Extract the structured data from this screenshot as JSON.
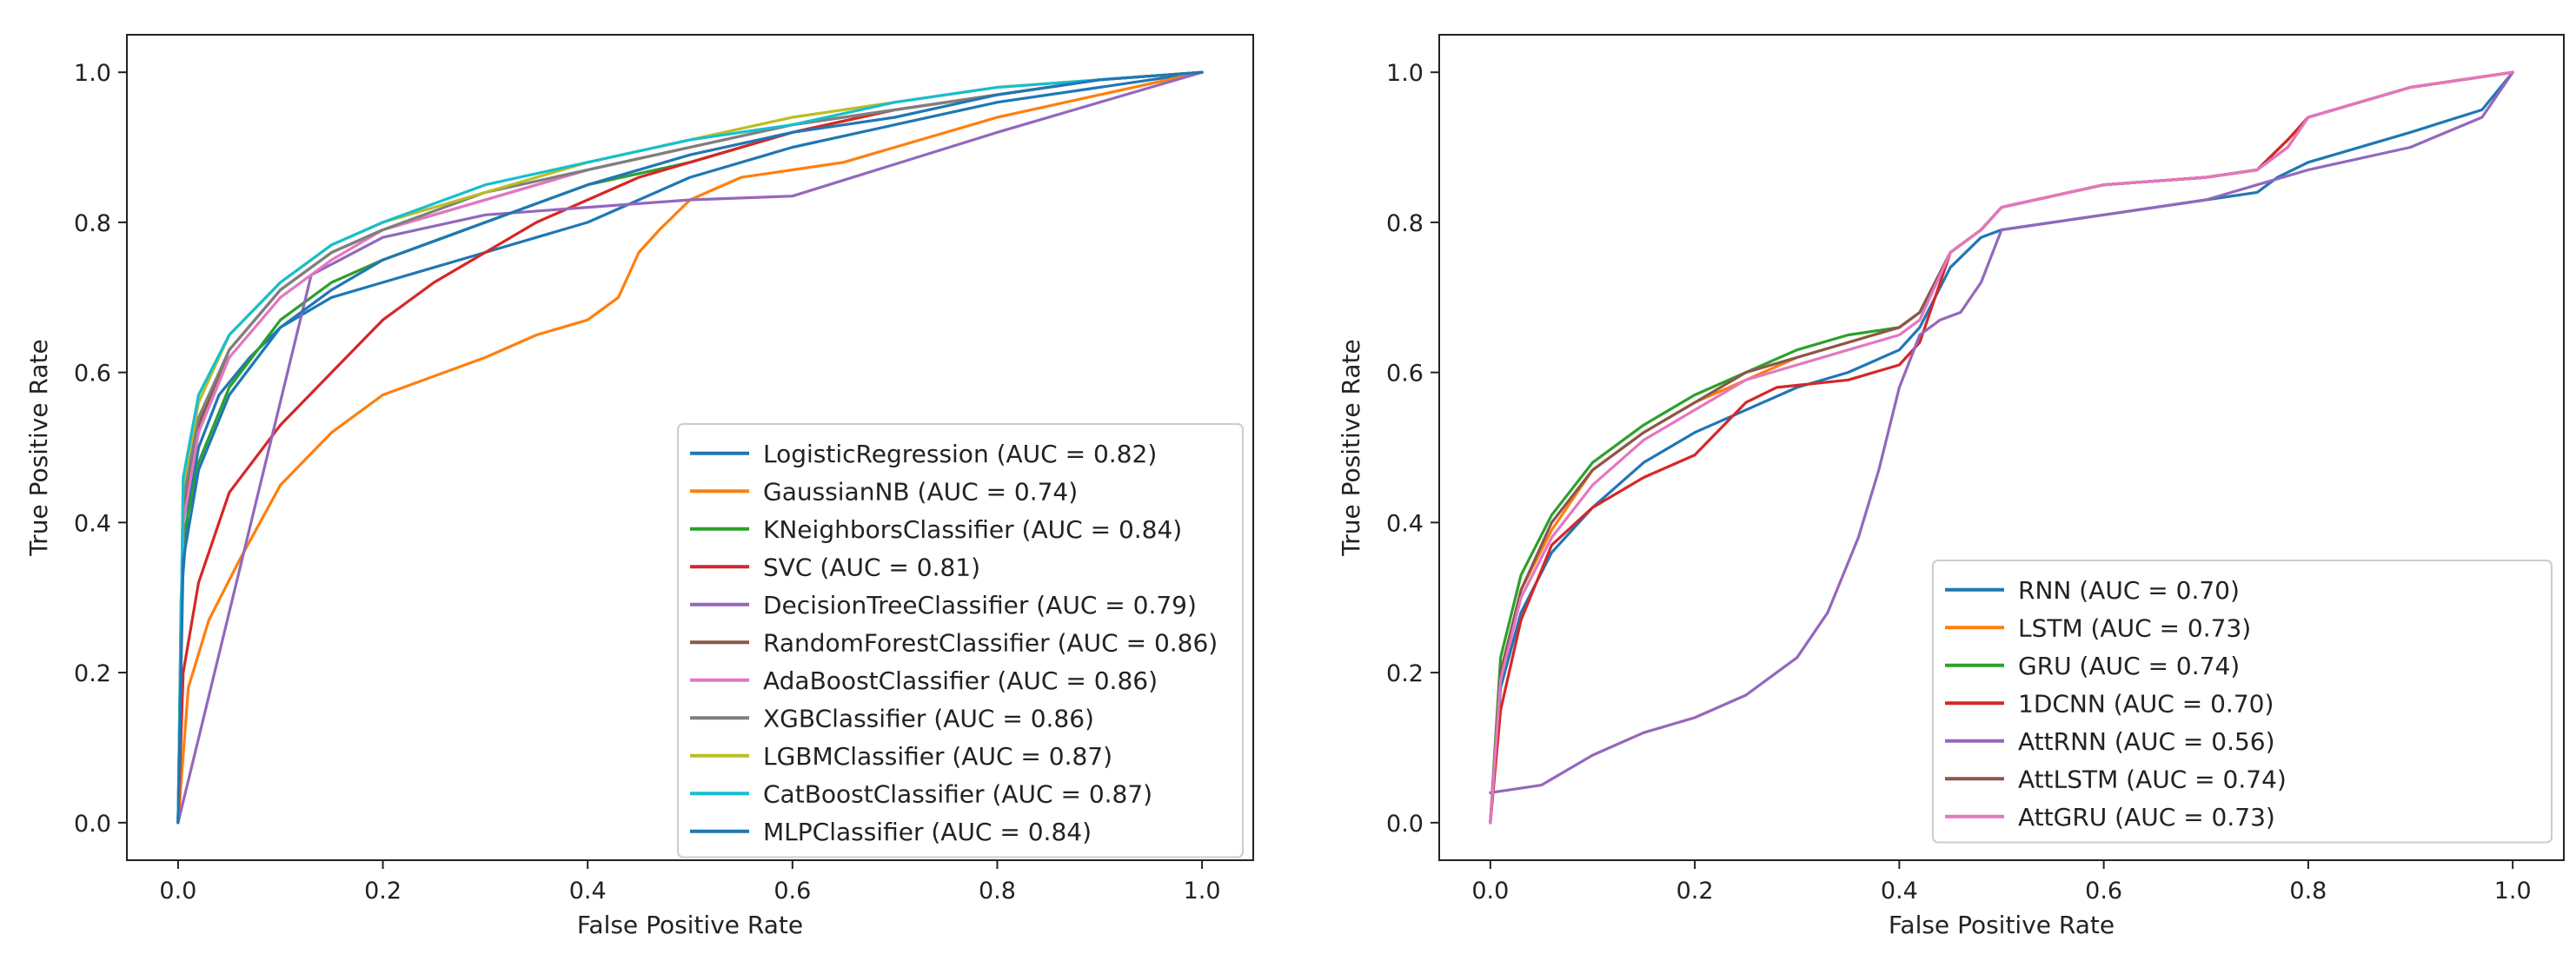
{
  "chart_data": [
    {
      "type": "line",
      "title": "",
      "xlabel": "False Positive Rate",
      "ylabel": "True Positive Rate",
      "xlim": [
        -0.05,
        1.05
      ],
      "ylim": [
        -0.05,
        1.05
      ],
      "xticks": [
        "0.0",
        "0.2",
        "0.4",
        "0.6",
        "0.8",
        "1.0"
      ],
      "yticks": [
        "0.0",
        "0.2",
        "0.4",
        "0.6",
        "0.8",
        "1.0"
      ],
      "legend_position": "lower-right",
      "series": [
        {
          "name": "LogisticRegression (AUC = 0.82)",
          "color": "#1f77b4",
          "x": [
            0,
            0.003,
            0.01,
            0.02,
            0.04,
            0.07,
            0.1,
            0.15,
            0.2,
            0.3,
            0.4,
            0.5,
            0.6,
            0.7,
            0.8,
            0.9,
            1.0
          ],
          "y": [
            0,
            0.3,
            0.42,
            0.5,
            0.57,
            0.62,
            0.66,
            0.7,
            0.72,
            0.76,
            0.8,
            0.86,
            0.9,
            0.93,
            0.96,
            0.98,
            1.0
          ]
        },
        {
          "name": "GaussianNB (AUC = 0.74)",
          "color": "#ff7f0e",
          "x": [
            0,
            0.01,
            0.03,
            0.06,
            0.1,
            0.15,
            0.2,
            0.3,
            0.35,
            0.4,
            0.43,
            0.45,
            0.47,
            0.5,
            0.55,
            0.6,
            0.65,
            0.7,
            0.8,
            0.9,
            1.0
          ],
          "y": [
            0,
            0.18,
            0.27,
            0.35,
            0.45,
            0.52,
            0.57,
            0.62,
            0.65,
            0.67,
            0.7,
            0.76,
            0.79,
            0.83,
            0.86,
            0.87,
            0.88,
            0.9,
            0.94,
            0.97,
            1.0
          ]
        },
        {
          "name": "KNeighborsClassifier (AUC = 0.84)",
          "color": "#2ca02c",
          "x": [
            0,
            0.005,
            0.02,
            0.05,
            0.1,
            0.15,
            0.2,
            0.3,
            0.4,
            0.5,
            0.6,
            0.7,
            0.8,
            0.9,
            1.0
          ],
          "y": [
            0,
            0.38,
            0.48,
            0.58,
            0.67,
            0.72,
            0.75,
            0.8,
            0.85,
            0.88,
            0.92,
            0.95,
            0.97,
            0.99,
            1.0
          ]
        },
        {
          "name": "SVC (AUC = 0.81)",
          "color": "#d62728",
          "x": [
            0,
            0.005,
            0.02,
            0.05,
            0.1,
            0.15,
            0.2,
            0.25,
            0.3,
            0.35,
            0.4,
            0.45,
            0.5,
            0.6,
            0.7,
            0.8,
            0.9,
            1.0
          ],
          "y": [
            0,
            0.2,
            0.32,
            0.44,
            0.53,
            0.6,
            0.67,
            0.72,
            0.76,
            0.8,
            0.83,
            0.86,
            0.88,
            0.92,
            0.95,
            0.97,
            0.99,
            1.0
          ]
        },
        {
          "name": "DecisionTreeClassifier (AUC = 0.79)",
          "color": "#9467bd",
          "x": [
            0,
            0.13,
            0.2,
            0.3,
            0.4,
            0.5,
            0.6,
            0.8,
            1.0
          ],
          "y": [
            0,
            0.73,
            0.78,
            0.81,
            0.82,
            0.83,
            0.835,
            0.92,
            1.0
          ]
        },
        {
          "name": "RandomForestClassifier (AUC = 0.86)",
          "color": "#8c564b",
          "x": [
            0,
            0.005,
            0.02,
            0.05,
            0.1,
            0.15,
            0.2,
            0.3,
            0.4,
            0.5,
            0.6,
            0.7,
            0.8,
            0.9,
            1.0
          ],
          "y": [
            0,
            0.42,
            0.53,
            0.63,
            0.71,
            0.76,
            0.79,
            0.83,
            0.87,
            0.9,
            0.93,
            0.95,
            0.97,
            0.99,
            1.0
          ]
        },
        {
          "name": "AdaBoostClassifier (AUC = 0.86)",
          "color": "#e377c2",
          "x": [
            0,
            0.005,
            0.02,
            0.05,
            0.1,
            0.15,
            0.2,
            0.3,
            0.4,
            0.5,
            0.6,
            0.7,
            0.8,
            0.9,
            1.0
          ],
          "y": [
            0,
            0.4,
            0.52,
            0.62,
            0.7,
            0.75,
            0.79,
            0.83,
            0.87,
            0.9,
            0.93,
            0.95,
            0.97,
            0.99,
            1.0
          ]
        },
        {
          "name": "XGBClassifier (AUC = 0.86)",
          "color": "#7f7f7f",
          "x": [
            0,
            0.005,
            0.02,
            0.05,
            0.1,
            0.15,
            0.2,
            0.3,
            0.4,
            0.5,
            0.6,
            0.7,
            0.8,
            0.9,
            1.0
          ],
          "y": [
            0,
            0.43,
            0.54,
            0.63,
            0.71,
            0.76,
            0.79,
            0.84,
            0.87,
            0.9,
            0.93,
            0.95,
            0.97,
            0.99,
            1.0
          ]
        },
        {
          "name": "LGBMClassifier (AUC = 0.87)",
          "color": "#bcbd22",
          "x": [
            0,
            0.005,
            0.02,
            0.05,
            0.1,
            0.15,
            0.2,
            0.3,
            0.4,
            0.5,
            0.6,
            0.7,
            0.8,
            0.9,
            1.0
          ],
          "y": [
            0,
            0.45,
            0.56,
            0.65,
            0.72,
            0.77,
            0.8,
            0.84,
            0.88,
            0.91,
            0.94,
            0.96,
            0.98,
            0.99,
            1.0
          ]
        },
        {
          "name": "CatBoostClassifier (AUC = 0.87)",
          "color": "#17becf",
          "x": [
            0,
            0.005,
            0.02,
            0.05,
            0.1,
            0.15,
            0.2,
            0.3,
            0.4,
            0.5,
            0.6,
            0.7,
            0.8,
            0.9,
            1.0
          ],
          "y": [
            0,
            0.46,
            0.57,
            0.65,
            0.72,
            0.77,
            0.8,
            0.85,
            0.88,
            0.91,
            0.93,
            0.96,
            0.98,
            0.99,
            1.0
          ]
        },
        {
          "name": "MLPClassifier (AUC = 0.84)",
          "color": "#1f77b4",
          "x": [
            0,
            0.005,
            0.02,
            0.05,
            0.1,
            0.15,
            0.2,
            0.3,
            0.4,
            0.5,
            0.6,
            0.7,
            0.8,
            0.9,
            1.0
          ],
          "y": [
            0,
            0.35,
            0.47,
            0.57,
            0.66,
            0.71,
            0.75,
            0.8,
            0.85,
            0.89,
            0.92,
            0.94,
            0.97,
            0.99,
            1.0
          ]
        }
      ]
    },
    {
      "type": "line",
      "title": "",
      "xlabel": "False Positive Rate",
      "ylabel": "True Positive Rate",
      "xlim": [
        -0.05,
        1.05
      ],
      "ylim": [
        -0.05,
        1.05
      ],
      "xticks": [
        "0.0",
        "0.2",
        "0.4",
        "0.6",
        "0.8",
        "1.0"
      ],
      "yticks": [
        "0.0",
        "0.2",
        "0.4",
        "0.6",
        "0.8",
        "1.0"
      ],
      "legend_position": "lower-right",
      "series": [
        {
          "name": "RNN (AUC = 0.70)",
          "color": "#1f77b4",
          "x": [
            0,
            0.01,
            0.03,
            0.06,
            0.1,
            0.15,
            0.2,
            0.25,
            0.3,
            0.35,
            0.4,
            0.42,
            0.45,
            0.48,
            0.5,
            0.6,
            0.7,
            0.75,
            0.77,
            0.8,
            0.9,
            0.97,
            1.0
          ],
          "y": [
            0,
            0.18,
            0.28,
            0.36,
            0.42,
            0.48,
            0.52,
            0.55,
            0.58,
            0.6,
            0.63,
            0.66,
            0.74,
            0.78,
            0.79,
            0.81,
            0.83,
            0.84,
            0.86,
            0.88,
            0.92,
            0.95,
            1.0
          ]
        },
        {
          "name": "LSTM (AUC = 0.73)",
          "color": "#ff7f0e",
          "x": [
            0,
            0.01,
            0.03,
            0.06,
            0.1,
            0.15,
            0.2,
            0.25,
            0.3,
            0.35,
            0.4,
            0.42,
            0.45,
            0.48,
            0.5,
            0.6,
            0.7,
            0.75,
            0.78,
            0.8,
            0.9,
            1.0
          ],
          "y": [
            0,
            0.2,
            0.31,
            0.39,
            0.47,
            0.52,
            0.56,
            0.59,
            0.62,
            0.64,
            0.66,
            0.68,
            0.76,
            0.79,
            0.82,
            0.85,
            0.86,
            0.87,
            0.9,
            0.94,
            0.98,
            1.0
          ]
        },
        {
          "name": "GRU (AUC = 0.74)",
          "color": "#2ca02c",
          "x": [
            0,
            0.01,
            0.03,
            0.06,
            0.1,
            0.15,
            0.2,
            0.25,
            0.3,
            0.35,
            0.4,
            0.42,
            0.45,
            0.48,
            0.5,
            0.6,
            0.7,
            0.75,
            0.78,
            0.8,
            0.9,
            1.0
          ],
          "y": [
            0,
            0.22,
            0.33,
            0.41,
            0.48,
            0.53,
            0.57,
            0.6,
            0.63,
            0.65,
            0.66,
            0.68,
            0.76,
            0.79,
            0.82,
            0.85,
            0.86,
            0.87,
            0.91,
            0.94,
            0.98,
            1.0
          ]
        },
        {
          "name": "1DCNN (AUC = 0.70)",
          "color": "#d62728",
          "x": [
            0,
            0.01,
            0.03,
            0.06,
            0.1,
            0.15,
            0.2,
            0.25,
            0.28,
            0.35,
            0.4,
            0.42,
            0.45,
            0.48,
            0.5,
            0.6,
            0.7,
            0.75,
            0.78,
            0.8,
            0.9,
            1.0
          ],
          "y": [
            0,
            0.15,
            0.27,
            0.37,
            0.42,
            0.46,
            0.49,
            0.56,
            0.58,
            0.59,
            0.61,
            0.64,
            0.76,
            0.79,
            0.82,
            0.85,
            0.86,
            0.87,
            0.91,
            0.94,
            0.98,
            1.0
          ]
        },
        {
          "name": "AttRNN (AUC = 0.56)",
          "color": "#9467bd",
          "x": [
            0,
            0.05,
            0.1,
            0.15,
            0.2,
            0.25,
            0.3,
            0.33,
            0.36,
            0.38,
            0.4,
            0.42,
            0.44,
            0.46,
            0.48,
            0.5,
            0.6,
            0.7,
            0.75,
            0.8,
            0.9,
            0.97,
            1.0
          ],
          "y": [
            0.04,
            0.05,
            0.09,
            0.12,
            0.14,
            0.17,
            0.22,
            0.28,
            0.38,
            0.47,
            0.58,
            0.65,
            0.67,
            0.68,
            0.72,
            0.79,
            0.81,
            0.83,
            0.85,
            0.87,
            0.9,
            0.94,
            1.0
          ]
        },
        {
          "name": "AttLSTM (AUC = 0.74)",
          "color": "#8c564b",
          "x": [
            0,
            0.01,
            0.03,
            0.06,
            0.1,
            0.15,
            0.2,
            0.25,
            0.3,
            0.35,
            0.4,
            0.42,
            0.45,
            0.48,
            0.5,
            0.6,
            0.7,
            0.75,
            0.78,
            0.8,
            0.9,
            1.0
          ],
          "y": [
            0,
            0.2,
            0.31,
            0.4,
            0.47,
            0.52,
            0.56,
            0.6,
            0.62,
            0.64,
            0.66,
            0.68,
            0.76,
            0.79,
            0.82,
            0.85,
            0.86,
            0.87,
            0.9,
            0.94,
            0.98,
            1.0
          ]
        },
        {
          "name": "AttGRU (AUC = 0.73)",
          "color": "#e377c2",
          "x": [
            0,
            0.01,
            0.03,
            0.06,
            0.1,
            0.15,
            0.2,
            0.25,
            0.3,
            0.35,
            0.4,
            0.42,
            0.45,
            0.48,
            0.5,
            0.6,
            0.7,
            0.75,
            0.78,
            0.8,
            0.9,
            1.0
          ],
          "y": [
            0,
            0.19,
            0.3,
            0.38,
            0.45,
            0.51,
            0.55,
            0.59,
            0.61,
            0.63,
            0.65,
            0.67,
            0.76,
            0.79,
            0.82,
            0.85,
            0.86,
            0.87,
            0.9,
            0.94,
            0.98,
            1.0
          ]
        }
      ]
    }
  ]
}
